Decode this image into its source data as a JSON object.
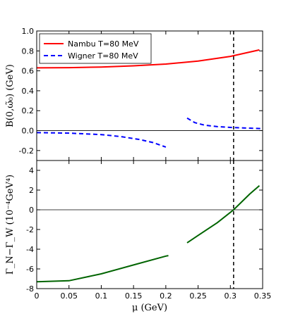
{
  "chart_data": [
    {
      "type": "line",
      "ylabel": "B(0,ω̃₀)  (GeV)",
      "xlim": [
        0,
        0.35
      ],
      "ylim": [
        -0.3,
        1.0
      ],
      "yticks": [
        "1.0",
        "0.8",
        "0.6",
        "0.4",
        "0.2",
        "0.0",
        "-0.2"
      ],
      "ytick_values": [
        1.0,
        0.8,
        0.6,
        0.4,
        0.2,
        0.0,
        -0.2
      ],
      "hline": 0,
      "vline": 0.305,
      "legend_position": "top-left",
      "series": [
        {
          "name": "Nambu T=80  MeV",
          "color": "#ff0000",
          "style": "solid",
          "x": [
            0,
            0.05,
            0.1,
            0.15,
            0.2,
            0.25,
            0.3,
            0.345
          ],
          "y": [
            0.63,
            0.632,
            0.638,
            0.65,
            0.668,
            0.698,
            0.745,
            0.81
          ]
        },
        {
          "name": "Wigner T=80  MeV",
          "color": "#0000ff",
          "style": "dashed",
          "segments": [
            {
              "x": [
                0,
                0.05,
                0.1,
                0.13,
                0.16,
                0.18,
                0.2
              ],
              "y": [
                -0.02,
                -0.025,
                -0.04,
                -0.06,
                -0.09,
                -0.12,
                -0.165
              ]
            },
            {
              "x": [
                0.233,
                0.245,
                0.26,
                0.28,
                0.3,
                0.32,
                0.35
              ],
              "y": [
                0.125,
                0.08,
                0.055,
                0.04,
                0.032,
                0.027,
                0.02
              ]
            }
          ]
        }
      ]
    },
    {
      "type": "line",
      "ylabel": "Γ_N−Γ_W  (10⁻⁴GeV⁴)",
      "xlabel": "μ  (GeV)",
      "xlim": [
        0,
        0.35
      ],
      "ylim": [
        -8,
        5
      ],
      "xticks": [
        "0",
        "0.05",
        "0.1",
        "0.15",
        "0.2",
        "0.25",
        "0.3",
        "0.35"
      ],
      "xtick_values": [
        0,
        0.05,
        0.1,
        0.15,
        0.2,
        0.25,
        0.3,
        0.35
      ],
      "yticks": [
        "4",
        "2",
        "0",
        "-2",
        "-4",
        "-6",
        "-8"
      ],
      "ytick_values": [
        4,
        2,
        0,
        -2,
        -4,
        -6,
        -8
      ],
      "hline": 0,
      "vline": 0.305,
      "series": [
        {
          "color": "#006400",
          "style": "solid",
          "segments": [
            {
              "x": [
                0,
                0.05,
                0.1,
                0.15,
                0.2,
                0.204
              ],
              "y": [
                -7.3,
                -7.2,
                -6.5,
                -5.6,
                -4.7,
                -4.65
              ]
            },
            {
              "x": [
                0.233,
                0.25,
                0.28,
                0.305,
                0.33,
                0.345
              ],
              "y": [
                -3.35,
                -2.6,
                -1.3,
                0.0,
                1.6,
                2.45
              ]
            }
          ]
        }
      ]
    }
  ]
}
